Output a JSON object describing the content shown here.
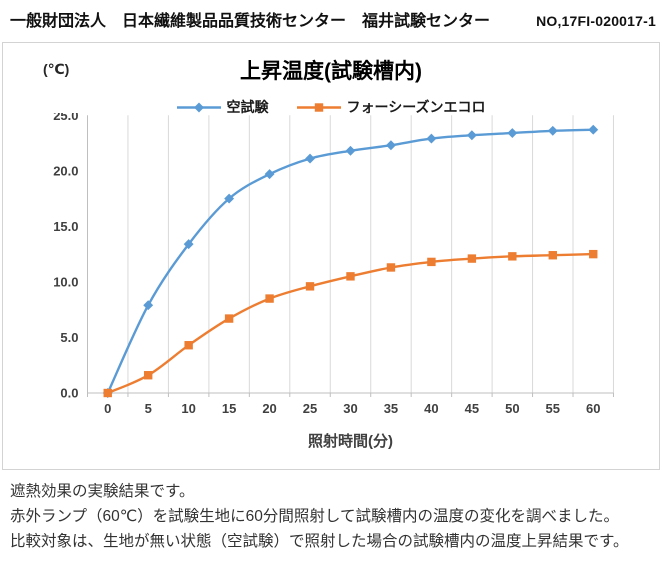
{
  "header": {
    "organization": "一般財団法人　日本繊維製品品質技術センター　福井試験センター",
    "report_no": "NO,17FI-020017-1"
  },
  "chart_data": {
    "type": "line",
    "title": "上昇温度(試験槽内)",
    "y_unit_label": "(℃)",
    "xlabel": "照射時間(分)",
    "ylabel": "(℃)",
    "x": [
      0,
      5,
      10,
      15,
      20,
      25,
      30,
      35,
      40,
      45,
      50,
      55,
      60
    ],
    "series": [
      {
        "name": "空試験",
        "marker": "diamond",
        "color": "#5B9BD5",
        "values": [
          0.0,
          7.9,
          13.4,
          17.5,
          19.7,
          21.1,
          21.8,
          22.3,
          22.9,
          23.2,
          23.4,
          23.6,
          23.7
        ]
      },
      {
        "name": "フォーシーズンエコロ",
        "marker": "square",
        "color": "#ED7D31",
        "values": [
          0.0,
          1.6,
          4.3,
          6.7,
          8.5,
          9.6,
          10.5,
          11.3,
          11.8,
          12.1,
          12.3,
          12.4,
          12.5
        ]
      }
    ],
    "ylim": [
      0,
      25
    ],
    "ytick_step": 5,
    "ytick_decimals": 1,
    "grid": "vertical-only",
    "legend_position": "top-center",
    "colors": {
      "gridline": "#D9D9D9",
      "axis_line": "#BFBFBF",
      "tick_text": "#404040"
    }
  },
  "notes": {
    "lines": [
      "遮熱効果の実験結果です。",
      "赤外ランプ（60℃）を試験生地に60分間照射して試験槽内の温度の変化を調べました。",
      "比較対象は、生地が無い状態（空試験）で照射した場合の試験槽内の温度上昇結果です。"
    ]
  }
}
